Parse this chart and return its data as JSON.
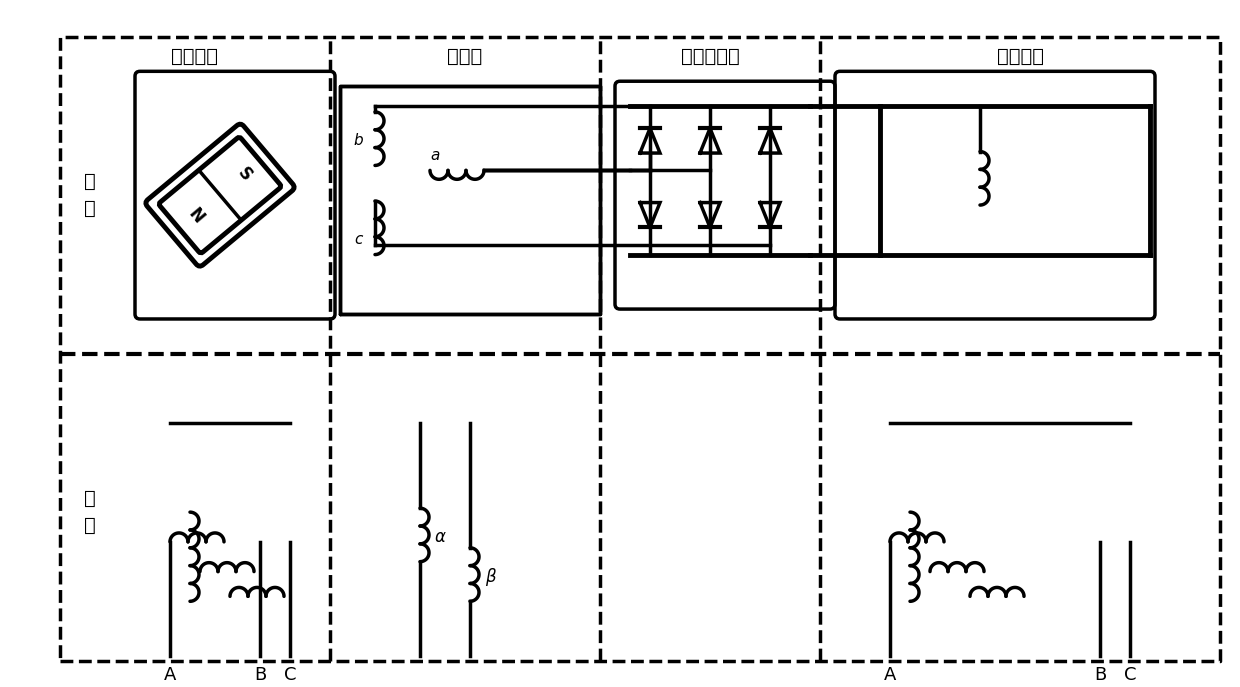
{
  "title": "",
  "bg_color": "#ffffff",
  "line_color": "#000000",
  "lw": 2.5,
  "lw_thick": 3.5,
  "fig_width": 12.4,
  "fig_height": 6.87,
  "labels_top": [
    "副励磁机",
    "励磁机",
    "旋转整流器",
    "主发电机"
  ],
  "labels_left": [
    "转子",
    "定子"
  ],
  "labels_bottom_left": [
    "A",
    "B",
    "C"
  ],
  "labels_bottom_right": [
    "A",
    "B",
    "C"
  ]
}
